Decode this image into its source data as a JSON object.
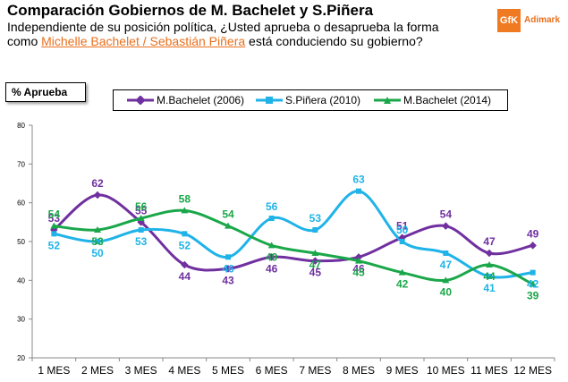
{
  "header": {
    "title": "Comparación Gobiernos de M. Bachelet y S.Piñera",
    "subtitle_pre": "Independiente de su posición política, ¿Usted aprueba o desaprueba la forma como ",
    "subtitle_highlight": "Michelle Bachelet / Sebastián Piñera",
    "subtitle_post": " está conduciendo su gobierno?"
  },
  "logo": {
    "mark": "GfK",
    "name": "Adimark"
  },
  "chart_data": {
    "type": "line",
    "title": "",
    "ylabel": "% Aprueba",
    "xlabel": "",
    "ylim": [
      20,
      80
    ],
    "yticks": [
      20,
      30,
      40,
      50,
      60,
      70,
      80
    ],
    "categories": [
      "1 MES",
      "2 MES",
      "3 MES",
      "4 MES",
      "5 MES",
      "6 MES",
      "7 MES",
      "8 MES",
      "9 MES",
      "10 MES",
      "11 MES",
      "12 MES"
    ],
    "legend_position": "top",
    "series": [
      {
        "name": "M.Bachelet (2006)",
        "color": "#7030A0",
        "values": [
          53,
          62,
          55,
          44,
          43,
          46,
          45,
          46,
          51,
          54,
          47,
          49
        ]
      },
      {
        "name": "S.Piñera (2010)",
        "color": "#1FB3E8",
        "values": [
          52,
          50,
          53,
          52,
          46,
          56,
          53,
          63,
          50,
          47,
          41,
          42
        ]
      },
      {
        "name": "M.Bachelet (2014)",
        "color": "#1AA74A",
        "values": [
          54,
          53,
          56,
          58,
          54,
          49,
          47,
          45,
          42,
          40,
          44,
          39
        ]
      }
    ]
  }
}
